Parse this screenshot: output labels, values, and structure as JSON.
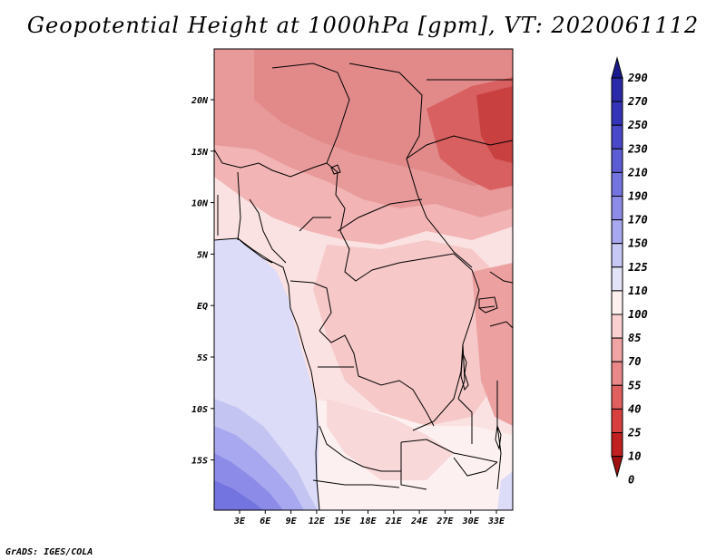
{
  "title": "Geopotential Height at 1000hPa [gpm], VT: 2020061112",
  "credit": "GrADS: IGES/COLA",
  "map": {
    "lat_labels": [
      "20N",
      "15N",
      "10N",
      "5N",
      "EQ",
      "5S",
      "10S",
      "15S"
    ],
    "lon_labels": [
      "3E",
      "6E",
      "9E",
      "12E",
      "15E",
      "18E",
      "21E",
      "24E",
      "27E",
      "30E",
      "33E"
    ]
  },
  "colorbar": {
    "levels": [
      "290",
      "270",
      "250",
      "230",
      "210",
      "190",
      "170",
      "150",
      "125",
      "110",
      "100",
      "85",
      "70",
      "55",
      "40",
      "25",
      "10",
      "0"
    ],
    "colors": [
      "#1a1a8c",
      "#2a2aa8",
      "#3434b8",
      "#4848c8",
      "#5c5cd4",
      "#7474e0",
      "#8c8ce8",
      "#a8a8f0",
      "#c8c8f4",
      "#e4e4f8",
      "#fff0f0",
      "#fad0d0",
      "#f0a4a4",
      "#e88888",
      "#e06060",
      "#d84040",
      "#c02020",
      "#a01010"
    ]
  },
  "colors": {
    "hot": "#d84848",
    "warm": "#e48888",
    "mild": "#f2b4b4",
    "pale": "#fce4e4",
    "ocean_light": "#dcdcf8",
    "ocean_mid": "#c4c4f2",
    "ocean_deep": "#8c8ce8"
  }
}
